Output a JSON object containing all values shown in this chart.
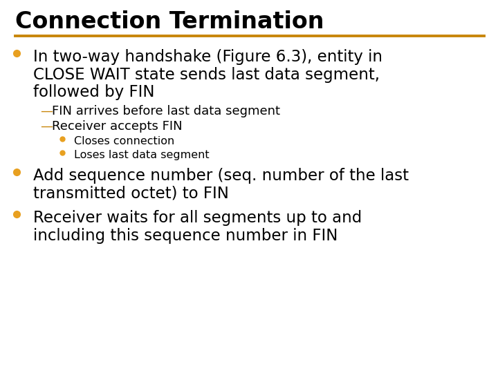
{
  "title": "Connection Termination",
  "title_color": "#000000",
  "title_fontsize": 24,
  "underline_color": "#C8860A",
  "background_color": "#ffffff",
  "bullet_color": "#E8A020",
  "dash_color": "#C8860A",
  "text_color": "#000000",
  "content": [
    {
      "type": "bullet_large",
      "lines": [
        "In two-way handshake (Figure 6.3), entity in",
        "CLOSE WAIT state sends last data segment,",
        "followed by FIN"
      ],
      "fontsize": 16.5,
      "bold": false
    },
    {
      "type": "dash",
      "lines": [
        "FIN arrives before last data segment"
      ],
      "fontsize": 13,
      "bold": false
    },
    {
      "type": "dash",
      "lines": [
        "Receiver accepts FIN"
      ],
      "fontsize": 13,
      "bold": false
    },
    {
      "type": "sub_bullet",
      "lines": [
        "Closes connection"
      ],
      "fontsize": 11.5,
      "bold": false
    },
    {
      "type": "sub_bullet",
      "lines": [
        "Loses last data segment"
      ],
      "fontsize": 11.5,
      "bold": false
    },
    {
      "type": "bullet_large",
      "lines": [
        "Add sequence number (seq. number of the last",
        "transmitted octet) to FIN"
      ],
      "fontsize": 16.5,
      "bold": false
    },
    {
      "type": "bullet_large",
      "lines": [
        "Receiver waits for all segments up to and",
        "including this sequence number in FIN"
      ],
      "fontsize": 16.5,
      "bold": false
    }
  ]
}
